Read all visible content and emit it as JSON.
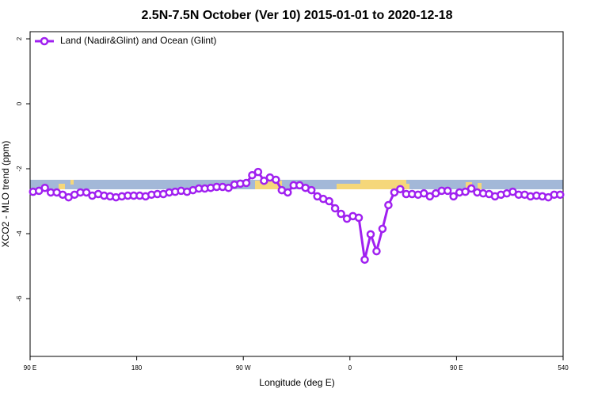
{
  "chart_data": {
    "type": "line",
    "title": "2.5N-7.5N October (Ver 10)   2015-01-01 to 2020-12-18",
    "x_label": "Longitude (deg E)",
    "y_label": "XCO2 - MLO trend (ppm)",
    "xlim": [
      90,
      540
    ],
    "xticks": [
      {
        "value": 90,
        "label": "90 E"
      },
      180,
      {
        "value": 270,
        "label": "90 W"
      },
      {
        "value": 360,
        "label": "0"
      },
      {
        "value": 450,
        "label": "90 E"
      },
      540
    ],
    "ylim": [
      -7.78,
      2.22
    ],
    "yticks": [
      -6,
      -4,
      -2,
      0,
      2
    ],
    "legend": "top-left",
    "x": [
      92.5,
      97.5,
      102.5,
      107.5,
      112.5,
      117.5,
      122.5,
      127.5,
      132.5,
      137.5,
      142.5,
      147.5,
      152.5,
      157.5,
      162.5,
      167.5,
      172.5,
      177.5,
      182.5,
      187.5,
      192.5,
      197.5,
      202.5,
      207.5,
      212.5,
      217.5,
      222.5,
      227.5,
      232.5,
      237.5,
      242.5,
      247.5,
      252.5,
      257.5,
      262.5,
      267.5,
      272.5,
      277.5,
      282.5,
      287.5,
      292.5,
      297.5,
      302.5,
      307.5,
      312.5,
      317.5,
      322.5,
      327.5,
      332.5,
      337.5,
      342.5,
      347.5,
      352.5,
      357.5,
      362.5,
      367.5,
      372.5,
      377.5,
      382.5,
      387.5,
      392.5,
      397.5,
      402.5,
      407.5,
      412.5,
      417.5,
      422.5,
      427.5,
      432.5,
      437.5,
      442.5,
      447.5,
      452.5,
      457.5,
      462.5,
      467.5,
      472.5,
      477.5,
      482.5,
      487.5,
      492.5,
      497.5,
      502.5,
      507.5,
      512.5,
      517.5,
      522.5,
      527.5,
      532.5,
      537.5
    ],
    "series": [
      {
        "name": "Land (Nadir&Glint) and Ocean (Glint)",
        "color": "#a020f0",
        "values": [
          -2.71,
          -2.68,
          -2.59,
          -2.73,
          -2.73,
          -2.8,
          -2.88,
          -2.8,
          -2.73,
          -2.73,
          -2.83,
          -2.78,
          -2.83,
          -2.85,
          -2.88,
          -2.85,
          -2.83,
          -2.83,
          -2.83,
          -2.85,
          -2.8,
          -2.78,
          -2.78,
          -2.73,
          -2.71,
          -2.68,
          -2.71,
          -2.66,
          -2.61,
          -2.61,
          -2.59,
          -2.56,
          -2.56,
          -2.59,
          -2.49,
          -2.46,
          -2.44,
          -2.2,
          -2.1,
          -2.37,
          -2.27,
          -2.34,
          -2.66,
          -2.73,
          -2.51,
          -2.51,
          -2.59,
          -2.66,
          -2.85,
          -2.93,
          -3.0,
          -3.22,
          -3.39,
          -3.54,
          -3.46,
          -3.51,
          -4.8,
          -4.02,
          -4.54,
          -3.85,
          -3.12,
          -2.73,
          -2.63,
          -2.78,
          -2.78,
          -2.8,
          -2.76,
          -2.85,
          -2.76,
          -2.68,
          -2.68,
          -2.85,
          -2.73,
          -2.71,
          -2.61,
          -2.73,
          -2.76,
          -2.78,
          -2.85,
          -2.8,
          -2.76,
          -2.71,
          -2.8,
          -2.8,
          -2.85,
          -2.83,
          -2.85,
          -2.88,
          -2.8,
          -2.8
        ]
      }
    ]
  }
}
